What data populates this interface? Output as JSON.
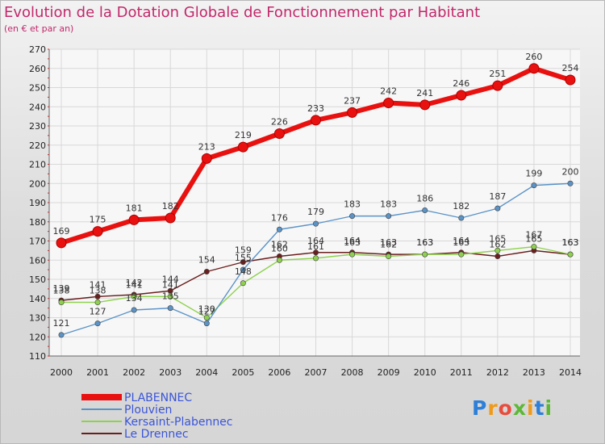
{
  "title": "Evolution de la Dotation Globale de Fonctionnement par Habitant",
  "subtitle": "(en € et par an)",
  "logo": {
    "letters": [
      "P",
      "r",
      "o",
      "x",
      "i",
      "t",
      "i"
    ],
    "colors": [
      "#2e7fd8",
      "#f09a1a",
      "#e84c3d",
      "#5cb836",
      "#f09a1a",
      "#2e7fd8",
      "#5cb836"
    ]
  },
  "chart_data": {
    "type": "line",
    "x": [
      2000,
      2001,
      2002,
      2003,
      2004,
      2005,
      2006,
      2007,
      2008,
      2009,
      2010,
      2011,
      2012,
      2013,
      2014
    ],
    "ylim": [
      110,
      270
    ],
    "yticks": [
      110,
      120,
      130,
      140,
      150,
      160,
      170,
      180,
      190,
      200,
      210,
      220,
      230,
      240,
      250,
      260,
      270
    ],
    "grid": true,
    "legend_position": "bottom-left",
    "series": [
      {
        "name": "PLABENNEC",
        "color": "#e8110f",
        "values": [
          169,
          175,
          181,
          182,
          213,
          219,
          226,
          233,
          237,
          242,
          241,
          246,
          251,
          260,
          254
        ]
      },
      {
        "name": "Plouvien",
        "color": "#5b93c7",
        "values": [
          121,
          127,
          134,
          135,
          127,
          155,
          176,
          179,
          183,
          183,
          186,
          182,
          187,
          199,
          200
        ]
      },
      {
        "name": "Kersaint-Plabennec",
        "color": "#8fd14f",
        "values": [
          138,
          138,
          141,
          141,
          130,
          148,
          160,
          161,
          163,
          162,
          163,
          163,
          165,
          167,
          163
        ]
      },
      {
        "name": "Le Drennec",
        "color": "#6b1e1e",
        "values": [
          139,
          141,
          142,
          144,
          154,
          159,
          162,
          164,
          164,
          163,
          163,
          164,
          162,
          165,
          163
        ]
      }
    ]
  }
}
